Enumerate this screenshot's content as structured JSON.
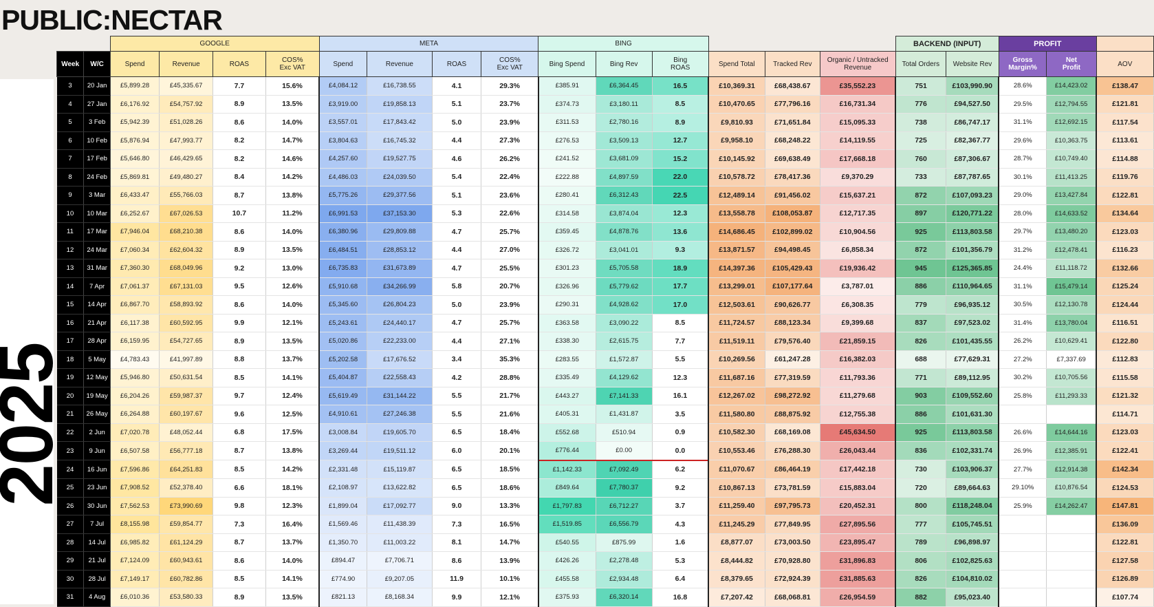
{
  "logo": "PUBLIC:NECTAR",
  "year": "2025",
  "groups": {
    "google": "GOOGLE",
    "meta": "META",
    "bing": "BING",
    "backend": "BACKEND (INPUT)",
    "profit": "PROFIT"
  },
  "headers": {
    "week": "Week",
    "wc": "W/C",
    "g_spend": "Spend",
    "g_rev": "Revenue",
    "g_roas": "ROAS",
    "g_cos_1": "COS%",
    "g_cos_2": "Exc VAT",
    "m_spend": "Spend",
    "m_rev": "Revenue",
    "m_roas": "ROAS",
    "m_cos_1": "COS%",
    "m_cos_2": "Exc VAT",
    "b_spend": "Bing Spend",
    "b_rev": "Bing Rev",
    "b_roas_1": "Bing",
    "b_roas_2": "ROAS",
    "spend_total": "Spend Total",
    "tracked_rev": "Tracked Rev",
    "organic_1": "Organic / Untracked",
    "organic_2": "Revenue",
    "total_orders": "Total Orders",
    "website_rev": "Website Rev",
    "gm_1": "Gross",
    "gm_2": "Margin%",
    "np_1": "Net",
    "np_2": "Profit",
    "aov": "AOV"
  },
  "colors": {
    "header_google": "#fde9a6",
    "header_meta": "#cfe0f7",
    "header_bing": "#d6f7ec",
    "header_backend": "#d4ecd9",
    "header_profit": "#6a3fa0",
    "header_aov": "#fbdfc6",
    "week_bg": "#000000",
    "red_line": "#cc2222"
  },
  "rows": [
    [
      "3",
      "20 Jan",
      "£5,899.28",
      "£45,335.67",
      "7.7",
      "15.6%",
      "£4,084.12",
      "£16,738.55",
      "4.1",
      "29.3%",
      "£385.91",
      "£6,364.45",
      "16.5",
      "£10,369.31",
      "£68,438.67",
      "£35,552.23",
      "751",
      "£103,990.90",
      "28.6%",
      "£14,423.02",
      "£138.47"
    ],
    [
      "4",
      "27 Jan",
      "£6,176.92",
      "£54,757.92",
      "8.9",
      "13.5%",
      "£3,919.00",
      "£19,858.13",
      "5.1",
      "23.7%",
      "£374.73",
      "£3,180.11",
      "8.5",
      "£10,470.65",
      "£77,796.16",
      "£16,731.34",
      "776",
      "£94,527.50",
      "29.5%",
      "£12,794.55",
      "£121.81"
    ],
    [
      "5",
      "3 Feb",
      "£5,942.39",
      "£51,028.26",
      "8.6",
      "14.0%",
      "£3,557.01",
      "£17,843.42",
      "5.0",
      "23.9%",
      "£311.53",
      "£2,780.16",
      "8.9",
      "£9,810.93",
      "£71,651.84",
      "£15,095.33",
      "738",
      "£86,747.17",
      "31.1%",
      "£12,692.15",
      "£117.54"
    ],
    [
      "6",
      "10 Feb",
      "£5,876.94",
      "£47,993.77",
      "8.2",
      "14.7%",
      "£3,804.63",
      "£16,745.32",
      "4.4",
      "27.3%",
      "£276.53",
      "£3,509.13",
      "12.7",
      "£9,958.10",
      "£68,248.22",
      "£14,119.55",
      "725",
      "£82,367.77",
      "29.6%",
      "£10,363.75",
      "£113.61"
    ],
    [
      "7",
      "17 Feb",
      "£5,646.80",
      "£46,429.65",
      "8.2",
      "14.6%",
      "£4,257.60",
      "£19,527.75",
      "4.6",
      "26.2%",
      "£241.52",
      "£3,681.09",
      "15.2",
      "£10,145.92",
      "£69,638.49",
      "£17,668.18",
      "760",
      "£87,306.67",
      "28.7%",
      "£10,749.40",
      "£114.88"
    ],
    [
      "8",
      "24 Feb",
      "£5,869.81",
      "£49,480.27",
      "8.4",
      "14.2%",
      "£4,486.03",
      "£24,039.50",
      "5.4",
      "22.4%",
      "£222.88",
      "£4,897.59",
      "22.0",
      "£10,578.72",
      "£78,417.36",
      "£9,370.29",
      "733",
      "£87,787.65",
      "30.1%",
      "£11,413.25",
      "£119.76"
    ],
    [
      "9",
      "3 Mar",
      "£6,433.47",
      "£55,766.03",
      "8.7",
      "13.8%",
      "£5,775.26",
      "£29,377.56",
      "5.1",
      "23.6%",
      "£280.41",
      "£6,312.43",
      "22.5",
      "£12,489.14",
      "£91,456.02",
      "£15,637.21",
      "872",
      "£107,093.23",
      "29.0%",
      "£13,427.84",
      "£122.81"
    ],
    [
      "10",
      "10 Mar",
      "£6,252.67",
      "£67,026.53",
      "10.7",
      "11.2%",
      "£6,991.53",
      "£37,153.30",
      "5.3",
      "22.6%",
      "£314.58",
      "£3,874.04",
      "12.3",
      "£13,558.78",
      "£108,053.87",
      "£12,717.35",
      "897",
      "£120,771.22",
      "28.0%",
      "£14,633.52",
      "£134.64"
    ],
    [
      "11",
      "17 Mar",
      "£7,946.04",
      "£68,210.38",
      "8.6",
      "14.0%",
      "£6,380.96",
      "£29,809.88",
      "4.7",
      "25.7%",
      "£359.45",
      "£4,878.76",
      "13.6",
      "£14,686.45",
      "£102,899.02",
      "£10,904.56",
      "925",
      "£113,803.58",
      "29.7%",
      "£13,480.20",
      "£123.03"
    ],
    [
      "12",
      "24 Mar",
      "£7,060.34",
      "£62,604.32",
      "8.9",
      "13.5%",
      "£6,484.51",
      "£28,853.12",
      "4.4",
      "27.0%",
      "£326.72",
      "£3,041.01",
      "9.3",
      "£13,871.57",
      "£94,498.45",
      "£6,858.34",
      "872",
      "£101,356.79",
      "31.2%",
      "£12,478.41",
      "£116.23"
    ],
    [
      "13",
      "31 Mar",
      "£7,360.30",
      "£68,049.96",
      "9.2",
      "13.0%",
      "£6,735.83",
      "£31,673.89",
      "4.7",
      "25.5%",
      "£301.23",
      "£5,705.58",
      "18.9",
      "£14,397.36",
      "£105,429.43",
      "£19,936.42",
      "945",
      "£125,365.85",
      "24.4%",
      "£11,118.72",
      "£132.66"
    ],
    [
      "14",
      "7 Apr",
      "£7,061.37",
      "£67,131.03",
      "9.5",
      "12.6%",
      "£5,910.68",
      "£34,266.99",
      "5.8",
      "20.7%",
      "£326.96",
      "£5,779.62",
      "17.7",
      "£13,299.01",
      "£107,177.64",
      "£3,787.01",
      "886",
      "£110,964.65",
      "31.1%",
      "£15,479.14",
      "£125.24"
    ],
    [
      "15",
      "14 Apr",
      "£6,867.70",
      "£58,893.92",
      "8.6",
      "14.0%",
      "£5,345.60",
      "£26,804.23",
      "5.0",
      "23.9%",
      "£290.31",
      "£4,928.62",
      "17.0",
      "£12,503.61",
      "£90,626.77",
      "£6,308.35",
      "779",
      "£96,935.12",
      "30.5%",
      "£12,130.78",
      "£124.44"
    ],
    [
      "16",
      "21 Apr",
      "£6,117.38",
      "£60,592.95",
      "9.9",
      "12.1%",
      "£5,243.61",
      "£24,440.17",
      "4.7",
      "25.7%",
      "£363.58",
      "£3,090.22",
      "8.5",
      "£11,724.57",
      "£88,123.34",
      "£9,399.68",
      "837",
      "£97,523.02",
      "31.4%",
      "£13,780.04",
      "£116.51"
    ],
    [
      "17",
      "28 Apr",
      "£6,159.95",
      "£54,727.65",
      "8.9",
      "13.5%",
      "£5,020.86",
      "£22,233.00",
      "4.4",
      "27.1%",
      "£338.30",
      "£2,615.75",
      "7.7",
      "£11,519.11",
      "£79,576.40",
      "£21,859.15",
      "826",
      "£101,435.55",
      "26.2%",
      "£10,629.41",
      "£122.80"
    ],
    [
      "18",
      "5 May",
      "£4,783.43",
      "£41,997.89",
      "8.8",
      "13.7%",
      "£5,202.58",
      "£17,676.52",
      "3.4",
      "35.3%",
      "£283.55",
      "£1,572.87",
      "5.5",
      "£10,269.56",
      "£61,247.28",
      "£16,382.03",
      "688",
      "£77,629.31",
      "27.2%",
      "£7,337.69",
      "£112.83"
    ],
    [
      "19",
      "12 May",
      "£5,946.80",
      "£50,631.54",
      "8.5",
      "14.1%",
      "£5,404.87",
      "£22,558.43",
      "4.2",
      "28.8%",
      "£335.49",
      "£4,129.62",
      "12.3",
      "£11,687.16",
      "£77,319.59",
      "£11,793.36",
      "771",
      "£89,112.95",
      "30.2%",
      "£10,705.56",
      "£115.58"
    ],
    [
      "20",
      "19 May",
      "£6,204.26",
      "£59,987.37",
      "9.7",
      "12.4%",
      "£5,619.49",
      "£31,144.22",
      "5.5",
      "21.7%",
      "£443.27",
      "£7,141.33",
      "16.1",
      "£12,267.02",
      "£98,272.92",
      "£11,279.68",
      "903",
      "£109,552.60",
      "25.8%",
      "£11,293.33",
      "£121.32"
    ],
    [
      "21",
      "26 May",
      "£6,264.88",
      "£60,197.67",
      "9.6",
      "12.5%",
      "£4,910.61",
      "£27,246.38",
      "5.5",
      "21.6%",
      "£405.31",
      "£1,431.87",
      "3.5",
      "£11,580.80",
      "£88,875.92",
      "£12,755.38",
      "886",
      "£101,631.30",
      "",
      "",
      "£114.71"
    ],
    [
      "22",
      "2 Jun",
      "£7,020.78",
      "£48,052.44",
      "6.8",
      "17.5%",
      "£3,008.84",
      "£19,605.70",
      "6.5",
      "18.4%",
      "£552.68",
      "£510.94",
      "0.9",
      "£10,582.30",
      "£68,169.08",
      "£45,634.50",
      "925",
      "£113,803.58",
      "26.6%",
      "£14,644.16",
      "£123.03"
    ],
    [
      "23",
      "9 Jun",
      "£6,507.58",
      "£56,777.18",
      "8.7",
      "13.8%",
      "£3,269.44",
      "£19,511.12",
      "6.0",
      "20.1%",
      "£776.44",
      "£0.00",
      "0.0",
      "£10,553.46",
      "£76,288.30",
      "£26,043.44",
      "836",
      "£102,331.74",
      "26.9%",
      "£12,385.91",
      "£122.41"
    ],
    [
      "24",
      "16 Jun",
      "£7,596.86",
      "£64,251.83",
      "8.5",
      "14.2%",
      "£2,331.48",
      "£15,119.87",
      "6.5",
      "18.5%",
      "£1,142.33",
      "£7,092.49",
      "6.2",
      "£11,070.67",
      "£86,464.19",
      "£17,442.18",
      "730",
      "£103,906.37",
      "27.7%",
      "£12,914.38",
      "£142.34"
    ],
    [
      "25",
      "23 Jun",
      "£7,908.52",
      "£52,378.40",
      "6.6",
      "18.1%",
      "£2,108.97",
      "£13,622.82",
      "6.5",
      "18.6%",
      "£849.64",
      "£7,780.37",
      "9.2",
      "£10,867.13",
      "£73,781.59",
      "£15,883.04",
      "720",
      "£89,664.63",
      "29.10%",
      "£10,876.54",
      "£124.53"
    ],
    [
      "26",
      "30 Jun",
      "£7,562.53",
      "£73,990.69",
      "9.8",
      "12.3%",
      "£1,899.04",
      "£17,092.77",
      "9.0",
      "13.3%",
      "£1,797.83",
      "£6,712.27",
      "3.7",
      "£11,259.40",
      "£97,795.73",
      "£20,452.31",
      "800",
      "£118,248.04",
      "25.9%",
      "£14,262.47",
      "£147.81"
    ],
    [
      "27",
      "7 Jul",
      "£8,155.98",
      "£59,854.77",
      "7.3",
      "16.4%",
      "£1,569.46",
      "£11,438.39",
      "7.3",
      "16.5%",
      "£1,519.85",
      "£6,556.79",
      "4.3",
      "£11,245.29",
      "£77,849.95",
      "£27,895.56",
      "777",
      "£105,745.51",
      "",
      "",
      "£136.09"
    ],
    [
      "28",
      "14 Jul",
      "£6,985.82",
      "£61,124.29",
      "8.7",
      "13.7%",
      "£1,350.70",
      "£11,003.22",
      "8.1",
      "14.7%",
      "£540.55",
      "£875.99",
      "1.6",
      "£8,877.07",
      "£73,003.50",
      "£23,895.47",
      "789",
      "£96,898.97",
      "",
      "",
      "£122.81"
    ],
    [
      "29",
      "21 Jul",
      "£7,124.09",
      "£60,943.61",
      "8.6",
      "14.0%",
      "£894.47",
      "£7,706.71",
      "8.6",
      "13.9%",
      "£426.26",
      "£2,278.48",
      "5.3",
      "£8,444.82",
      "£70,928.80",
      "£31,896.83",
      "806",
      "£102,825.63",
      "",
      "",
      "£127.58"
    ],
    [
      "30",
      "28 Jul",
      "£7,149.17",
      "£60,782.86",
      "8.5",
      "14.1%",
      "£774.90",
      "£9,207.05",
      "11.9",
      "10.1%",
      "£455.58",
      "£2,934.48",
      "6.4",
      "£8,379.65",
      "£72,924.39",
      "£31,885.63",
      "826",
      "£104,810.02",
      "",
      "",
      "£126.89"
    ],
    [
      "31",
      "4 Aug",
      "£6,010.36",
      "£53,580.33",
      "8.9",
      "13.5%",
      "£821.13",
      "£8,168.34",
      "9.9",
      "12.1%",
      "£375.93",
      "£6,320.14",
      "16.8",
      "£7,207.42",
      "£68,068.81",
      "£26,954.59",
      "882",
      "£95,023.40",
      "",
      "",
      "£107.74"
    ]
  ]
}
